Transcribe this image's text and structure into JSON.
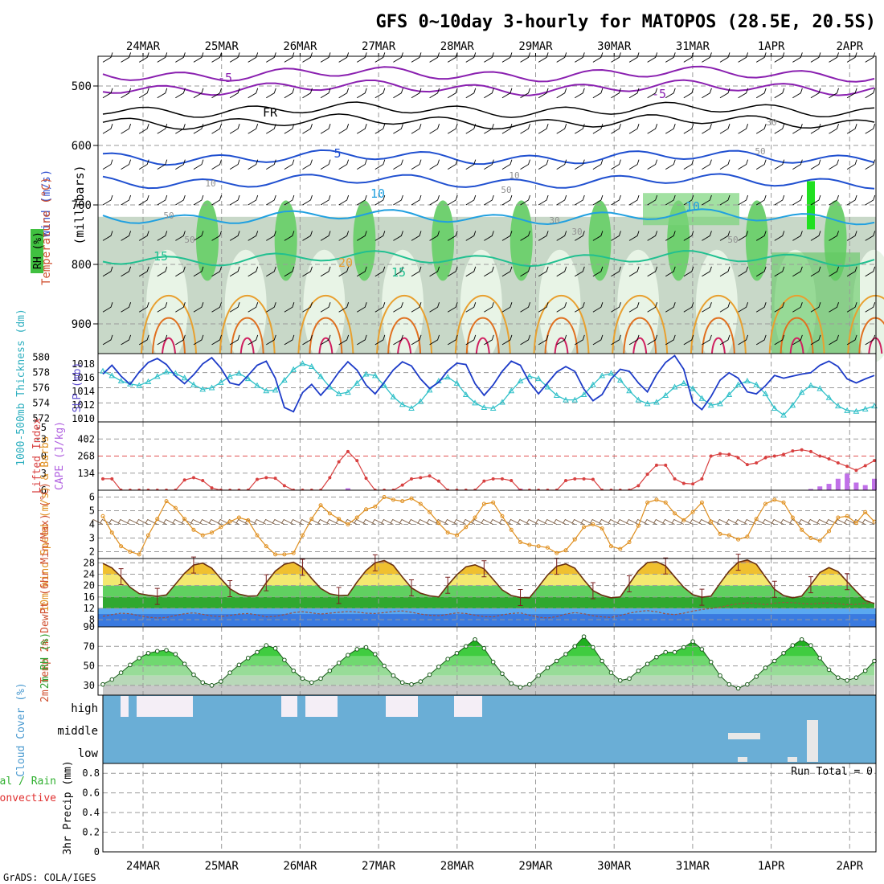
{
  "title": "GFS 0~10day 3-hourly for MATOPOS (28.5E, 20.5S)",
  "footer": "GrADS: COLA/IGES",
  "run_total": "Run Total = 0",
  "colors": {
    "slp": "#1e3cc8",
    "thickness": "#30c0c8",
    "lifted_index": "#d84040",
    "cape": "#c070e8",
    "wind_speed": "#e09020",
    "barb": "#7a5a40",
    "temp_fill_warm": "#e8a040",
    "temp_fill_mid": "#f0d040",
    "temp_fill_green": "#40c040",
    "dewpoint_fill": "#3a7ae0",
    "rh_fill": "#30c030",
    "cloud_blue": "#6aaed6",
    "cloud_clear": "#f4eef6",
    "isotherm_purple": "#8a20b0",
    "isotherm_blue": "#2050d0",
    "isotherm_lightblue": "#20a0e0",
    "isotherm_teal": "#20c090",
    "isotherm_orange": "#e8a030",
    "isotherm_red": "#d02060"
  },
  "chart_data": [
    {
      "type": "area",
      "panel": "upper-air",
      "ylabel": "(millibars)",
      "ylabel_left": [
        "Wind (m/s)",
        "Temperature (°C)",
        "RH (%)"
      ],
      "y_ticks": [
        "500",
        "600",
        "700",
        "800",
        "900"
      ],
      "ylim": [
        950,
        450
      ],
      "x_ticks": [
        "24MAR",
        "25MAR",
        "26MAR",
        "27MAR",
        "28MAR",
        "29MAR",
        "30MAR",
        "31MAR",
        "1APR",
        "2APR"
      ],
      "isotherm_labels": [
        "-5",
        "-5",
        "FR",
        "5",
        "10",
        "10",
        "15",
        "15",
        "20"
      ],
      "rh_labels": [
        "10",
        "10",
        "30",
        "30",
        "50",
        "50",
        "50",
        "50",
        "30",
        "50"
      ]
    },
    {
      "type": "line",
      "panel": "slp-thickness",
      "ylabel_left": "1000-500mb Thickness (dm)",
      "ylabel_right": "SLP (mb)",
      "thickness_ticks": [
        "580",
        "578",
        "576",
        "574",
        "572"
      ],
      "slp_ticks": [
        "1018",
        "1016",
        "1014",
        "1012",
        "1010"
      ],
      "thickness_lim": [
        571.5,
        580.5
      ],
      "slp_lim": [
        1009.5,
        1019.5
      ],
      "series": [
        {
          "name": "SLP",
          "values": [
            1016.5,
            1017.8,
            1016.2,
            1015.0,
            1016.8,
            1018.2,
            1018.8,
            1017.9,
            1016.2,
            1015.1,
            1016.4,
            1018.0,
            1018.9,
            1017.4,
            1015.2,
            1014.9,
            1016.3,
            1017.8,
            1018.4,
            1015.9,
            1011.6,
            1011.0,
            1013.8,
            1015.0,
            1013.4,
            1014.9,
            1016.8,
            1018.3,
            1017.1,
            1014.9,
            1013.6,
            1015.3,
            1017.1,
            1018.3,
            1017.7,
            1015.8,
            1014.4,
            1015.3,
            1017.0,
            1018.1,
            1017.9,
            1015.1,
            1013.4,
            1014.9,
            1016.9,
            1018.4,
            1017.8,
            1015.3,
            1013.6,
            1015.2,
            1016.8,
            1017.6,
            1016.9,
            1014.3,
            1012.6,
            1013.5,
            1015.8,
            1017.2,
            1016.9,
            1015.2,
            1013.9,
            1016.4,
            1018.2,
            1019.2,
            1017.2,
            1012.4,
            1011.3,
            1013.2,
            1015.6,
            1016.7,
            1015.9,
            1013.9,
            1013.6,
            1014.8,
            1016.3,
            1015.9,
            1016.2,
            1016.5,
            1016.7,
            1017.8,
            1018.4,
            1017.6,
            1015.8,
            1015.2,
            1015.8,
            1016.3
          ]
        },
        {
          "name": "Thickness",
          "values": [
            578.2,
            577.6,
            576.9,
            576.5,
            576.3,
            576.8,
            577.5,
            578.1,
            577.9,
            577.3,
            576.4,
            575.8,
            576.0,
            576.7,
            577.5,
            577.9,
            577.2,
            576.3,
            575.6,
            575.7,
            577.0,
            578.4,
            579.2,
            578.8,
            577.5,
            576.1,
            575.2,
            575.4,
            576.6,
            577.8,
            577.6,
            576.3,
            574.8,
            573.8,
            573.3,
            574.2,
            575.7,
            576.9,
            577.4,
            576.6,
            575.1,
            574.0,
            573.4,
            573.3,
            574.1,
            575.6,
            576.9,
            577.5,
            577.2,
            576.1,
            575.0,
            574.4,
            574.4,
            575.1,
            576.4,
            577.6,
            577.9,
            577.0,
            575.6,
            574.4,
            573.9,
            574.1,
            575.0,
            576.1,
            576.6,
            575.9,
            574.6,
            573.7,
            573.9,
            575.1,
            576.4,
            576.9,
            576.4,
            575.2,
            573.3,
            572.4,
            573.7,
            575.4,
            576.3,
            575.9,
            574.7,
            573.6,
            573.0,
            572.9,
            573.2,
            573.6
          ]
        }
      ]
    },
    {
      "type": "bar",
      "panel": "lifted-index-cape",
      "ylabel_left": "Lifted Index",
      "ylabel_right": "CAPE (J/kg)",
      "li_ticks": [
        "-5",
        "-3",
        "0",
        "3",
        "6"
      ],
      "cape_ticks": [
        "402",
        "268",
        "134"
      ],
      "li_lim": [
        -6,
        6
      ],
      "cape_lim": [
        0,
        536
      ],
      "series": [
        {
          "name": "Lifted Index",
          "values": [
            4.0,
            4.0,
            6.0,
            6.0,
            6.0,
            6.0,
            6.0,
            6.0,
            6.0,
            4.2,
            3.8,
            4.3,
            5.6,
            6.0,
            6.0,
            6.0,
            6.0,
            4.1,
            3.8,
            3.9,
            5.2,
            6.0,
            6.0,
            6.0,
            6.0,
            3.8,
            1.0,
            -0.8,
            0.8,
            3.9,
            6.0,
            6.0,
            6.0,
            5.1,
            4.0,
            3.8,
            3.5,
            4.4,
            6.0,
            6.0,
            6.0,
            6.0,
            4.4,
            4.0,
            4.0,
            4.3,
            6.0,
            6.0,
            6.0,
            6.0,
            6.0,
            4.3,
            4.0,
            4.0,
            4.1,
            6.0,
            6.0,
            6.0,
            6.0,
            5.2,
            3.2,
            1.6,
            1.6,
            4.0,
            4.8,
            4.9,
            4.0,
            0.0,
            -0.4,
            -0.3,
            0.3,
            1.5,
            1.2,
            0.3,
            0.0,
            -0.3,
            -0.9,
            -1.1,
            -0.8,
            0.0,
            0.5,
            1.2,
            1.8,
            2.5,
            1.7,
            0.8
          ]
        },
        {
          "name": "CAPE",
          "values": [
            0,
            0,
            0,
            0,
            0,
            0,
            0,
            0,
            0,
            0,
            0,
            0,
            0,
            0,
            0,
            0,
            0,
            0,
            0,
            0,
            0,
            0,
            0,
            0,
            0,
            0,
            0,
            15,
            0,
            0,
            0,
            0,
            0,
            0,
            0,
            0,
            0,
            0,
            0,
            0,
            0,
            0,
            0,
            0,
            0,
            0,
            12,
            0,
            0,
            0,
            0,
            0,
            0,
            0,
            0,
            0,
            0,
            0,
            0,
            0,
            0,
            0,
            0,
            0,
            0,
            0,
            0,
            0,
            0,
            0,
            0,
            0,
            0,
            0,
            0,
            0,
            0,
            0,
            10,
            30,
            50,
            90,
            130,
            60,
            40,
            90
          ]
        }
      ]
    },
    {
      "type": "line",
      "panel": "10m-wind",
      "ylabel": "10m Wind Speed (m/s) & Barbs",
      "y_ticks": [
        "6",
        "5",
        "4",
        "3",
        "2"
      ],
      "ylim": [
        1.5,
        6.5
      ],
      "series": [
        {
          "name": "10m Wind Speed",
          "values": [
            4.6,
            3.4,
            2.4,
            2.0,
            1.8,
            3.2,
            4.4,
            5.7,
            5.2,
            4.4,
            3.6,
            3.2,
            3.4,
            3.8,
            4.2,
            4.5,
            4.3,
            3.2,
            2.4,
            1.8,
            1.8,
            1.9,
            3.2,
            4.4,
            5.4,
            4.8,
            4.4,
            4.0,
            4.5,
            5.1,
            5.3,
            6.0,
            5.8,
            5.7,
            5.9,
            5.5,
            4.9,
            4.1,
            3.4,
            3.2,
            3.8,
            4.5,
            5.5,
            5.6,
            4.6,
            3.6,
            2.7,
            2.5,
            2.4,
            2.3,
            1.9,
            2.1,
            2.9,
            3.8,
            4.0,
            3.7,
            2.4,
            2.2,
            2.7,
            3.9,
            5.6,
            5.8,
            5.6,
            4.8,
            4.3,
            4.9,
            5.6,
            4.2,
            3.3,
            3.2,
            2.9,
            3.1,
            4.4,
            5.5,
            5.8,
            5.6,
            4.5,
            3.6,
            3.0,
            2.8,
            3.5,
            4.5,
            4.6,
            4.1,
            4.9,
            4.2
          ]
        }
      ]
    },
    {
      "type": "area",
      "panel": "2m-temp",
      "ylabel": "2m Temp 2m DewPt (6hr Min/Max) (°C)",
      "y_ticks": [
        "28",
        "24",
        "20",
        "16",
        "12",
        "8"
      ],
      "ylim": [
        5.5,
        29.5
      ],
      "series": [
        {
          "name": "2m Temp",
          "values": [
            27.8,
            26.2,
            23.1,
            19.4,
            17.2,
            16.6,
            16.2,
            16.7,
            20.5,
            24.3,
            27.2,
            27.9,
            26.1,
            22.4,
            18.9,
            17.0,
            16.3,
            16.4,
            21.0,
            25.1,
            27.5,
            28.2,
            26.4,
            22.5,
            19.0,
            17.1,
            16.5,
            16.6,
            21.2,
            25.3,
            28.0,
            28.8,
            27.1,
            23.0,
            19.2,
            17.3,
            16.4,
            16.0,
            20.1,
            23.8,
            26.6,
            27.3,
            25.9,
            22.2,
            18.5,
            16.5,
            15.8,
            15.7,
            19.6,
            23.7,
            26.8,
            27.6,
            26.1,
            22.0,
            18.2,
            16.6,
            15.7,
            16.0,
            20.6,
            25.2,
            28.1,
            28.4,
            26.9,
            23.1,
            19.4,
            16.8,
            15.9,
            16.3,
            20.8,
            25.1,
            28.2,
            29.0,
            27.5,
            23.0,
            18.7,
            16.5,
            15.7,
            16.3,
            20.3,
            24.6,
            26.3,
            24.9,
            21.4,
            18.0,
            14.8,
            13.7
          ]
        },
        {
          "name": "2m DewPt",
          "values": [
            9.2,
            9.8,
            10.3,
            10.1,
            9.4,
            8.9,
            8.6,
            8.8,
            9.5,
            10.1,
            10.4,
            9.9,
            9.3,
            9.1,
            9.5,
            10.0,
            10.2,
            9.7,
            9.0,
            9.2,
            9.8,
            10.5,
            10.8,
            10.4,
            10.0,
            10.3,
            10.6,
            10.9,
            10.7,
            10.3,
            10.2,
            10.5,
            10.9,
            11.1,
            10.6,
            10.0,
            9.6,
            9.4,
            9.9,
            10.4,
            10.2,
            9.6,
            9.1,
            9.0,
            9.7,
            10.2,
            10.4,
            9.6,
            8.9,
            8.6,
            9.1,
            10.0,
            10.5,
            10.1,
            9.4,
            9.0,
            8.8,
            9.5,
            10.3,
            10.9,
            11.2,
            10.8,
            10.1,
            9.8,
            10.3,
            11.0,
            11.6,
            11.9,
            12.4,
            13.1,
            13.6,
            13.9,
            13.7,
            13.3,
            13.8,
            14.1,
            14.0,
            13.7,
            13.5,
            13.8,
            13.9,
            13.6,
            13.3,
            13.4,
            13.8,
            14.0
          ]
        }
      ]
    },
    {
      "type": "area",
      "panel": "2m-rh",
      "ylabel": "2m RH (%)",
      "y_ticks": [
        "90",
        "70",
        "50",
        "30"
      ],
      "ylim": [
        20,
        90
      ],
      "series": [
        {
          "name": "2m RH",
          "values": [
            31,
            36,
            43,
            51,
            58,
            63,
            65,
            66,
            62,
            52,
            41,
            33,
            30,
            34,
            43,
            51,
            58,
            64,
            71,
            68,
            56,
            45,
            37,
            33,
            37,
            45,
            53,
            61,
            67,
            69,
            62,
            50,
            40,
            33,
            31,
            34,
            41,
            49,
            57,
            63,
            70,
            77,
            68,
            54,
            42,
            32,
            28,
            31,
            40,
            48,
            55,
            62,
            70,
            80,
            69,
            55,
            43,
            35,
            37,
            45,
            52,
            59,
            64,
            64,
            69,
            75,
            67,
            54,
            40,
            31,
            27,
            31,
            39,
            48,
            55,
            63,
            71,
            77,
            71,
            58,
            46,
            38,
            35,
            38,
            45,
            55
          ]
        }
      ]
    },
    {
      "type": "area",
      "panel": "cloud-cover",
      "ylabel": "Cloud Cover (%)",
      "y_ticks": [
        "high",
        "middle",
        "low"
      ]
    },
    {
      "type": "bar",
      "panel": "precip",
      "ylabel_left": "3hr Precip (mm)",
      "legend": [
        "Total / Rain",
        "Convective"
      ],
      "y_ticks": [
        "0.8",
        "0.6",
        "0.4",
        "0.2",
        "0"
      ],
      "ylim": [
        0,
        0.9
      ],
      "x_ticks": [
        "24MAR",
        "25MAR",
        "26MAR",
        "27MAR",
        "28MAR",
        "29MAR",
        "30MAR",
        "31MAR",
        "1APR",
        "2APR"
      ]
    }
  ]
}
